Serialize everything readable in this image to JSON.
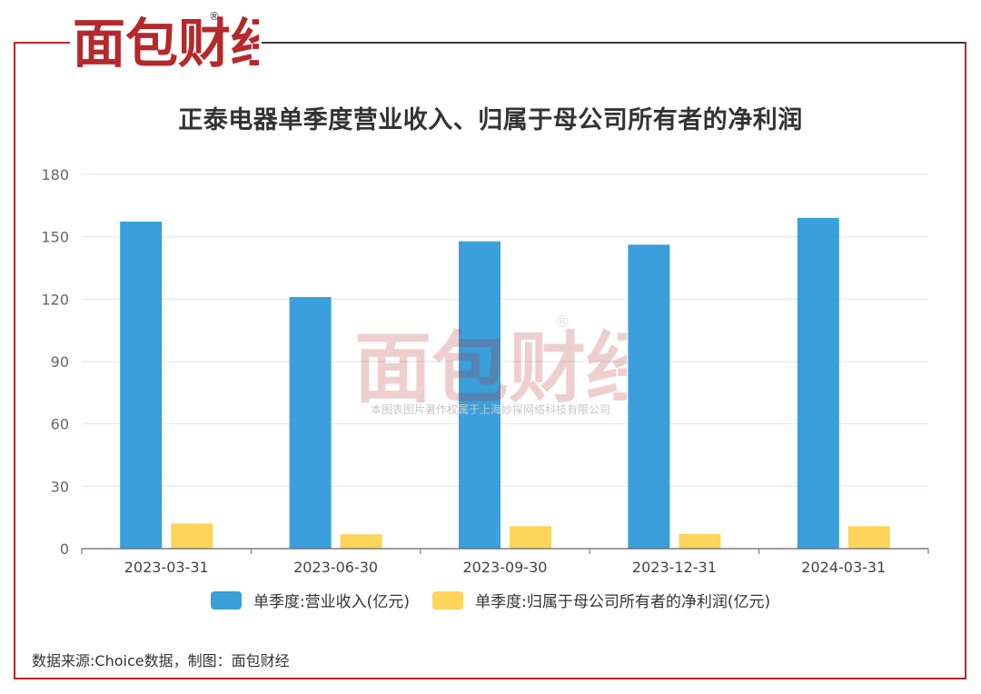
{
  "brand": {
    "logo_text": "面包财经",
    "watermark_text": "面包财经",
    "watermark_notice": "本图表图片著作权属于上海妙探网络科技有限公司",
    "frame_color": "#b5282b"
  },
  "chart_data": {
    "type": "bar",
    "title": "正泰电器单季度营业收入、归属于母公司所有者的净利润",
    "categories": [
      "2023-03-31",
      "2023-06-30",
      "2023-09-30",
      "2023-12-31",
      "2024-03-31"
    ],
    "series": [
      {
        "name": "单季度:营业收入(亿元)",
        "color": "#3a9fdb",
        "values": [
          157.3,
          121.0,
          147.8,
          146.2,
          159.1
        ]
      },
      {
        "name": "单季度:归属于母公司所有者的净利润(亿元)",
        "color": "#fcd55a",
        "values": [
          12.1,
          6.9,
          10.8,
          7.0,
          10.8
        ]
      }
    ],
    "ylim": [
      0,
      180
    ],
    "yticks": [
      "0",
      "30",
      "60",
      "90",
      "120",
      "150",
      "180"
    ],
    "xlabel": "",
    "ylabel": "",
    "grid": true,
    "legend_position": "bottom"
  },
  "source_note": "数据来源:Choice数据，制图：面包财经"
}
